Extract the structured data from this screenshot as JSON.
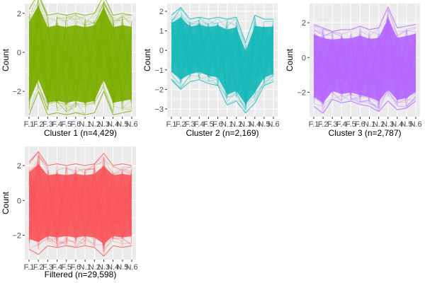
{
  "y_axis_title": "Count",
  "x_tick_labels": [
    "F.1",
    "F.2",
    "F.3",
    "F.4",
    "F.5",
    "F.6",
    "N.1",
    "N.2",
    "N.3",
    "N.4",
    "N.5",
    "N.6"
  ],
  "panel_bg": "#ebebeb",
  "grid_color": "#ffffff",
  "chart_data": [
    {
      "type": "line",
      "title": "Cluster 1 (n=4,429)",
      "ylabel": "Count",
      "color": "#7cae00",
      "ylim": [
        -3.3,
        2.5
      ],
      "yticks": [
        -2,
        0,
        2
      ],
      "x": [
        "F.1",
        "F.2",
        "F.3",
        "F.4",
        "F.5",
        "F.6",
        "N.1",
        "N.2",
        "N.3",
        "N.4",
        "N.5",
        "N.6"
      ],
      "upper": [
        2.2,
        3.0,
        1.9,
        2.0,
        1.9,
        2.0,
        1.9,
        2.0,
        2.9,
        1.9,
        2.0,
        1.9
      ],
      "lower": [
        -3.2,
        -2.0,
        -3.2,
        -3.1,
        -3.2,
        -3.1,
        -3.2,
        -3.1,
        -2.0,
        -3.2,
        -3.1,
        -3.0
      ]
    },
    {
      "type": "line",
      "title": "Cluster 2 (n=2,169)",
      "ylabel": "Count",
      "color": "#17b8b9",
      "ylim": [
        -3.4,
        2.4
      ],
      "yticks": [
        -3,
        -2,
        -1,
        0,
        1,
        2
      ],
      "x": [
        "F.1",
        "F.2",
        "F.3",
        "F.4",
        "F.5",
        "F.6",
        "N.1",
        "N.2",
        "N.3",
        "N.4",
        "N.5",
        "N.6"
      ],
      "upper": [
        1.8,
        2.2,
        1.6,
        1.7,
        1.6,
        1.7,
        1.6,
        1.7,
        0.4,
        1.8,
        1.6,
        1.6
      ],
      "lower": [
        -1.5,
        -2.0,
        -1.6,
        -1.5,
        -1.7,
        -1.8,
        -2.8,
        -2.6,
        -3.2,
        -2.7,
        -1.8,
        -1.6
      ]
    },
    {
      "type": "line",
      "title": "Cluster 3 (n=2,787)",
      "ylabel": "Count",
      "color": "#b566ff",
      "ylim": [
        -3.4,
        3.1
      ],
      "yticks": [
        -2,
        0,
        2
      ],
      "x": [
        "F.1",
        "F.2",
        "F.3",
        "F.4",
        "F.5",
        "F.6",
        "N.1",
        "N.2",
        "N.3",
        "N.4",
        "N.5",
        "N.6"
      ],
      "upper": [
        1.9,
        1.7,
        1.5,
        1.6,
        1.6,
        1.8,
        1.6,
        1.7,
        2.9,
        1.7,
        1.8,
        1.9
      ],
      "lower": [
        -2.8,
        -3.2,
        -2.4,
        -2.6,
        -2.5,
        -2.7,
        -2.8,
        -3.1,
        -2.5,
        -3.0,
        -2.9,
        -2.5
      ]
    },
    {
      "type": "line",
      "title": "Filtered (n=29,598)",
      "ylabel": "Count",
      "color": "#f8565a",
      "ylim": [
        -3.4,
        3.1
      ],
      "yticks": [
        -2,
        0,
        2
      ],
      "x": [
        "F.1",
        "F.2",
        "F.3",
        "F.4",
        "F.5",
        "F.6",
        "N.1",
        "N.2",
        "N.3",
        "N.4",
        "N.5",
        "N.6"
      ],
      "upper": [
        2.2,
        2.8,
        2.0,
        2.1,
        2.0,
        2.1,
        2.0,
        2.1,
        2.7,
        2.0,
        2.1,
        2.0
      ],
      "lower": [
        -2.8,
        -3.1,
        -2.6,
        -2.7,
        -2.6,
        -2.7,
        -2.6,
        -2.7,
        -3.2,
        -2.6,
        -2.7,
        -2.6
      ]
    }
  ]
}
